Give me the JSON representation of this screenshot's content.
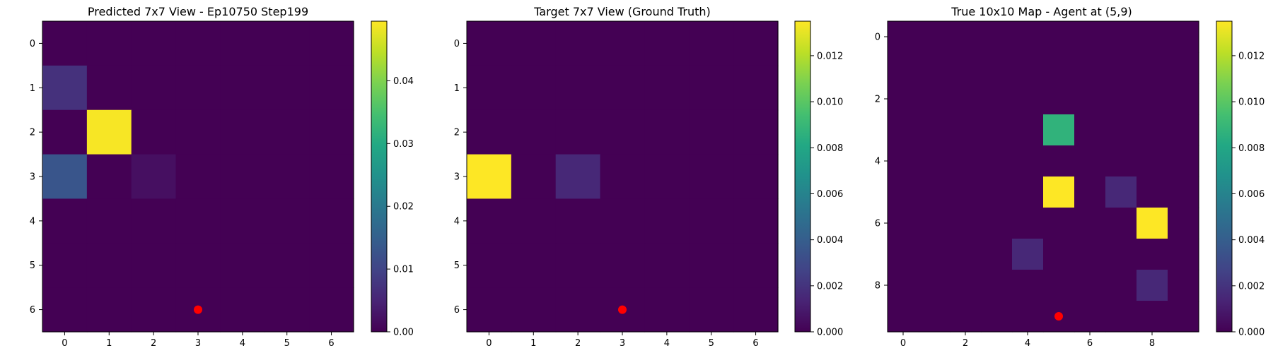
{
  "colors": {
    "viridis": [
      "#440154",
      "#482475",
      "#414487",
      "#355f8d",
      "#2a788e",
      "#21918c",
      "#22a884",
      "#44bf70",
      "#7ad151",
      "#bddf26",
      "#fde725"
    ],
    "agent_marker": "#ff0000",
    "frame": "#000000"
  },
  "chart_data": [
    {
      "type": "heatmap",
      "title": "Predicted 7x7 View - Ep10750 Step199",
      "xlabel": "",
      "ylabel": "",
      "rows": 7,
      "cols": 7,
      "values": [
        [
          0,
          0,
          0,
          0,
          0,
          0,
          0
        ],
        [
          0.007,
          0,
          0,
          0,
          0,
          0,
          0
        ],
        [
          0,
          0.049,
          0,
          0,
          0,
          0,
          0
        ],
        [
          0.013,
          0,
          0.002,
          0,
          0,
          0,
          0
        ],
        [
          0,
          0,
          0,
          0,
          0,
          0,
          0
        ],
        [
          0,
          0,
          0,
          0,
          0,
          0,
          0
        ],
        [
          0,
          0,
          0,
          0,
          0,
          0,
          0
        ]
      ],
      "vmin": 0,
      "vmax": 0.0495,
      "x_ticks": [
        "0",
        "1",
        "2",
        "3",
        "4",
        "5",
        "6"
      ],
      "y_ticks": [
        "0",
        "1",
        "2",
        "3",
        "4",
        "5",
        "6"
      ],
      "colorbar_ticks": [
        {
          "value": 0,
          "label": "0.00"
        },
        {
          "value": 0.01,
          "label": "0.01"
        },
        {
          "value": 0.02,
          "label": "0.02"
        },
        {
          "value": 0.03,
          "label": "0.03"
        },
        {
          "value": 0.04,
          "label": "0.04"
        }
      ],
      "agent": {
        "x": 3,
        "y": 6
      }
    },
    {
      "type": "heatmap",
      "title": "Target 7x7 View (Ground Truth)",
      "xlabel": "",
      "ylabel": "",
      "rows": 7,
      "cols": 7,
      "values": [
        [
          0,
          0,
          0,
          0,
          0,
          0,
          0
        ],
        [
          0,
          0,
          0,
          0,
          0,
          0,
          0
        ],
        [
          0,
          0,
          0,
          0,
          0,
          0,
          0
        ],
        [
          0.0135,
          0,
          0.0015,
          0,
          0,
          0,
          0
        ],
        [
          0,
          0,
          0,
          0,
          0,
          0,
          0
        ],
        [
          0,
          0,
          0,
          0,
          0,
          0,
          0
        ],
        [
          0,
          0,
          0,
          0,
          0,
          0,
          0
        ]
      ],
      "vmin": 0,
      "vmax": 0.0135,
      "x_ticks": [
        "0",
        "1",
        "2",
        "3",
        "4",
        "5",
        "6"
      ],
      "y_ticks": [
        "0",
        "1",
        "2",
        "3",
        "4",
        "5",
        "6"
      ],
      "colorbar_ticks": [
        {
          "value": 0,
          "label": "0.000"
        },
        {
          "value": 0.002,
          "label": "0.002"
        },
        {
          "value": 0.004,
          "label": "0.004"
        },
        {
          "value": 0.006,
          "label": "0.006"
        },
        {
          "value": 0.008,
          "label": "0.008"
        },
        {
          "value": 0.01,
          "label": "0.010"
        },
        {
          "value": 0.012,
          "label": "0.012"
        }
      ],
      "agent": {
        "x": 3,
        "y": 6
      }
    },
    {
      "type": "heatmap",
      "title": "True 10x10 Map - Agent at (5,9)",
      "xlabel": "",
      "ylabel": "",
      "rows": 10,
      "cols": 10,
      "values": [
        [
          0,
          0,
          0,
          0,
          0,
          0,
          0,
          0,
          0,
          0
        ],
        [
          0,
          0,
          0,
          0,
          0,
          0,
          0,
          0,
          0,
          0
        ],
        [
          0,
          0,
          0,
          0,
          0,
          0,
          0,
          0,
          0,
          0
        ],
        [
          0,
          0,
          0,
          0,
          0,
          0.0087,
          0,
          0,
          0,
          0
        ],
        [
          0,
          0,
          0,
          0,
          0,
          0,
          0,
          0,
          0,
          0
        ],
        [
          0,
          0,
          0,
          0,
          0,
          0.0135,
          0,
          0.0015,
          0,
          0
        ],
        [
          0,
          0,
          0,
          0,
          0,
          0,
          0,
          0,
          0.0135,
          0
        ],
        [
          0,
          0,
          0,
          0,
          0.0015,
          0,
          0,
          0,
          0,
          0
        ],
        [
          0,
          0,
          0,
          0,
          0,
          0,
          0,
          0,
          0.0015,
          0
        ],
        [
          0,
          0,
          0,
          0,
          0,
          0,
          0,
          0,
          0,
          0
        ]
      ],
      "vmin": 0,
      "vmax": 0.0135,
      "x_ticks": [
        "0",
        "2",
        "4",
        "6",
        "8"
      ],
      "x_tick_values": [
        0,
        2,
        4,
        6,
        8
      ],
      "y_ticks": [
        "0",
        "2",
        "4",
        "6",
        "8"
      ],
      "y_tick_values": [
        0,
        2,
        4,
        6,
        8
      ],
      "colorbar_ticks": [
        {
          "value": 0,
          "label": "0.000"
        },
        {
          "value": 0.002,
          "label": "0.002"
        },
        {
          "value": 0.004,
          "label": "0.004"
        },
        {
          "value": 0.006,
          "label": "0.006"
        },
        {
          "value": 0.008,
          "label": "0.008"
        },
        {
          "value": 0.01,
          "label": "0.010"
        },
        {
          "value": 0.012,
          "label": "0.012"
        }
      ],
      "agent": {
        "x": 5,
        "y": 9
      }
    }
  ]
}
